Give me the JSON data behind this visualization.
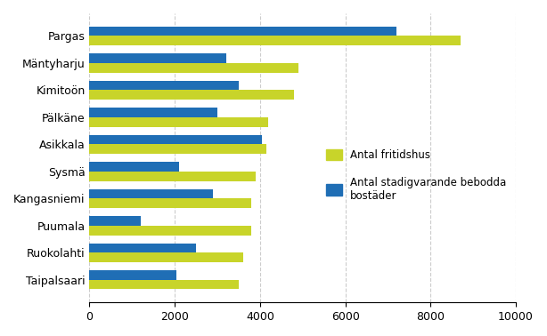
{
  "categories": [
    "Pargas",
    "Mäntyharju",
    "Kimitoön",
    "Pälkäne",
    "Asikkala",
    "Sysmä",
    "Kangasniemi",
    "Puumala",
    "Ruokolahti",
    "Taipalsaari"
  ],
  "fritidshus": [
    8700,
    4900,
    4800,
    4200,
    4150,
    3900,
    3800,
    3800,
    3600,
    3500
  ],
  "stadigvarande": [
    7200,
    3200,
    3500,
    3000,
    4050,
    2100,
    2900,
    1200,
    2500,
    2050
  ],
  "color_fritidshus": "#c8d42a",
  "color_stadigvarande": "#1f6eb5",
  "legend_fritidshus": "Antal fritidshus",
  "legend_stadigvarande": "Antal stadigvarande bebodda\nbostäder",
  "xlim": [
    0,
    10000
  ],
  "xticks": [
    0,
    2000,
    4000,
    6000,
    8000,
    10000
  ],
  "background_color": "#ffffff",
  "grid_color": "#cccccc"
}
